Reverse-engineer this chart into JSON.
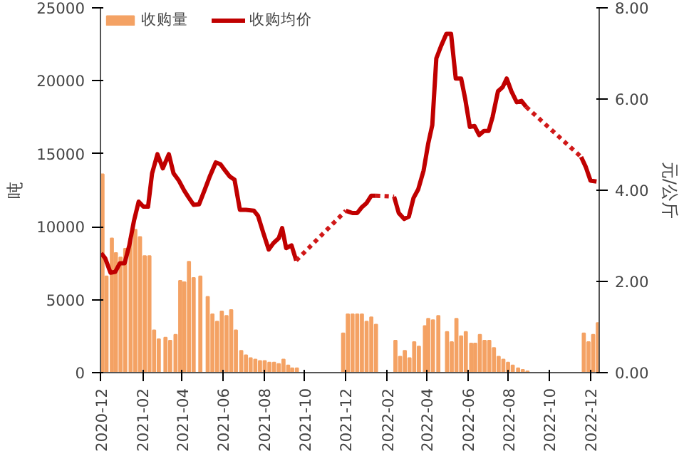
{
  "chart_data": {
    "type": "bar",
    "xlabel": null,
    "ylabel": "吨",
    "y2label": "元/公斤",
    "legend": "top left",
    "grid": false,
    "xlim": [
      "2020-11-30",
      "2022-12-14"
    ],
    "xticks": [
      {
        "value": "2020-12-01",
        "label": "2020-12"
      },
      {
        "value": "2021-02-01",
        "label": "2021-02"
      },
      {
        "value": "2021-04-01",
        "label": "2021-04"
      },
      {
        "value": "2021-06-01",
        "label": "2021-06"
      },
      {
        "value": "2021-08-01",
        "label": "2021-08"
      },
      {
        "value": "2021-10-01",
        "label": "2021-10"
      },
      {
        "value": "2021-12-01",
        "label": "2021-12"
      },
      {
        "value": "2022-02-01",
        "label": "2022-02"
      },
      {
        "value": "2022-04-01",
        "label": "2022-04"
      },
      {
        "value": "2022-06-01",
        "label": "2022-06"
      },
      {
        "value": "2022-08-01",
        "label": "2022-08"
      },
      {
        "value": "2022-10-01",
        "label": "2022-10"
      },
      {
        "value": "2022-12-01",
        "label": "2022-12"
      }
    ],
    "ylim": [
      0,
      25000
    ],
    "yticks": [
      0,
      5000,
      10000,
      15000,
      20000,
      25000
    ],
    "y2lim": [
      0,
      8
    ],
    "y2ticks": [
      {
        "value": 0,
        "label": "0.00"
      },
      {
        "value": 2,
        "label": "2.00"
      },
      {
        "value": 4,
        "label": "4.00"
      },
      {
        "value": 6,
        "label": "6.00"
      },
      {
        "value": 8,
        "label": "8.00"
      }
    ],
    "series": [
      {
        "name": "收购量",
        "color": "#f4a264",
        "x": [
          "2020-12-03",
          "2020-12-09",
          "2020-12-17",
          "2020-12-23",
          "2020-12-30",
          "2021-01-06",
          "2021-01-14",
          "2021-01-21",
          "2021-01-28",
          "2021-02-04",
          "2021-02-11",
          "2021-02-18",
          "2021-02-25",
          "2021-03-07",
          "2021-03-14",
          "2021-03-22",
          "2021-03-29",
          "2021-04-04",
          "2021-04-11",
          "2021-04-18",
          "2021-04-28",
          "2021-05-09",
          "2021-05-16",
          "2021-05-23",
          "2021-05-30",
          "2021-06-06",
          "2021-06-13",
          "2021-06-20",
          "2021-06-28",
          "2021-07-05",
          "2021-07-12",
          "2021-07-19",
          "2021-07-26",
          "2021-08-02",
          "2021-08-09",
          "2021-08-16",
          "2021-08-23",
          "2021-08-30",
          "2021-09-06",
          "2021-09-12",
          "2021-09-19",
          "2021-11-27",
          "2021-12-04",
          "2021-12-11",
          "2021-12-18",
          "2021-12-25",
          "2022-01-01",
          "2022-01-08",
          "2022-01-15",
          "2022-02-13",
          "2022-02-20",
          "2022-02-27",
          "2022-03-06",
          "2022-03-13",
          "2022-03-20",
          "2022-03-29",
          "2022-04-03",
          "2022-04-10",
          "2022-04-18",
          "2022-05-01",
          "2022-05-08",
          "2022-05-15",
          "2022-05-22",
          "2022-05-29",
          "2022-06-06",
          "2022-06-12",
          "2022-06-19",
          "2022-06-26",
          "2022-07-03",
          "2022-07-10",
          "2022-07-17",
          "2022-07-24",
          "2022-07-31",
          "2022-08-07",
          "2022-08-15",
          "2022-08-22",
          "2022-08-29",
          "2022-11-21",
          "2022-11-28",
          "2022-12-05",
          "2022-12-12"
        ],
        "values": [
          13600,
          6600,
          9200,
          8200,
          7900,
          8500,
          9200,
          9800,
          9300,
          8000,
          8000,
          2900,
          2300,
          2400,
          2200,
          2600,
          6300,
          6200,
          7600,
          6500,
          6600,
          5200,
          4000,
          3500,
          4200,
          3900,
          4300,
          2900,
          1500,
          1200,
          1000,
          900,
          800,
          800,
          700,
          700,
          600,
          900,
          500,
          300,
          300,
          2700,
          4000,
          4000,
          4000,
          4000,
          3500,
          3800,
          3300,
          2200,
          1100,
          1500,
          1000,
          2100,
          1800,
          3200,
          3700,
          3600,
          3900,
          2800,
          2100,
          3700,
          2500,
          2800,
          2000,
          2000,
          2600,
          2200,
          2200,
          1700,
          1100,
          900,
          700,
          500,
          300,
          200,
          100,
          2700,
          2100,
          2600,
          3400
        ]
      },
      {
        "name": "收购均价",
        "type": "line",
        "axis": "y2",
        "color": "#c00000",
        "x": [
          "2020-12-01",
          "2020-12-07",
          "2020-12-15",
          "2020-12-22",
          "2020-12-29",
          "2021-01-05",
          "2021-01-12",
          "2021-01-19",
          "2021-01-26",
          "2021-02-02",
          "2021-02-09",
          "2021-02-15",
          "2021-02-23",
          "2021-03-03",
          "2021-03-12",
          "2021-03-19",
          "2021-03-27",
          "2021-04-04",
          "2021-04-11",
          "2021-04-18",
          "2021-04-26",
          "2021-05-04",
          "2021-05-12",
          "2021-05-21",
          "2021-05-28",
          "2021-06-04",
          "2021-06-11",
          "2021-06-18",
          "2021-06-26",
          "2021-07-05",
          "2021-07-17",
          "2021-07-23",
          "2021-07-31",
          "2021-08-08",
          "2021-08-15",
          "2021-08-23",
          "2021-08-28",
          "2021-09-03",
          "2021-09-11",
          "2021-09-18",
          "2021-10-30",
          "2021-12-01",
          "2021-12-11",
          "2021-12-18",
          "2021-12-25",
          "2022-01-01",
          "2022-01-08",
          "2022-01-15",
          "2022-01-29",
          "2022-02-11",
          "2022-02-18",
          "2022-02-26",
          "2022-03-05",
          "2022-03-12",
          "2022-03-19",
          "2022-03-27",
          "2022-04-03",
          "2022-04-09",
          "2022-04-15",
          "2022-04-22",
          "2022-04-30",
          "2022-05-07",
          "2022-05-14",
          "2022-05-22",
          "2022-05-28",
          "2022-06-04",
          "2022-06-11",
          "2022-06-18",
          "2022-06-25",
          "2022-07-02",
          "2022-07-08",
          "2022-07-16",
          "2022-07-23",
          "2022-07-29",
          "2022-08-05",
          "2022-08-13",
          "2022-08-20",
          "2022-08-27",
          "2022-10-01",
          "2022-11-17",
          "2022-11-24",
          "2022-12-01",
          "2022-12-10"
        ],
        "values": [
          2.62,
          2.51,
          2.19,
          2.21,
          2.4,
          2.4,
          2.79,
          3.33,
          3.75,
          3.64,
          3.64,
          4.37,
          4.79,
          4.48,
          4.79,
          4.37,
          4.21,
          3.99,
          3.83,
          3.68,
          3.69,
          3.99,
          4.3,
          4.61,
          4.57,
          4.43,
          4.3,
          4.23,
          3.57,
          3.57,
          3.55,
          3.44,
          3.06,
          2.7,
          2.84,
          2.95,
          3.17,
          2.73,
          2.79,
          2.46,
          null,
          3.55,
          3.5,
          3.5,
          3.63,
          3.72,
          3.88,
          3.88,
          null,
          3.86,
          3.5,
          3.37,
          3.42,
          3.83,
          4.02,
          4.43,
          5.03,
          5.43,
          6.89,
          7.16,
          7.43,
          7.43,
          6.45,
          6.45,
          6.01,
          5.39,
          5.41,
          5.21,
          5.3,
          5.3,
          5.61,
          6.17,
          6.26,
          6.45,
          6.17,
          5.93,
          5.96,
          5.83,
          null,
          4.73,
          4.51,
          4.21,
          4.19
        ]
      },
      {
        "type": "line",
        "axis": "y2",
        "line_style": "dotted",
        "color": "#d01818",
        "x": [
          "2021-09-18",
          "2021-12-01",
          "2021-12-20",
          "2022-01-15",
          "2022-02-11",
          "2022-03-01",
          "2022-08-27",
          "2022-11-17"
        ],
        "values": [
          2.46,
          3.55,
          null,
          3.88,
          3.86,
          null,
          5.83,
          4.73
        ]
      }
    ]
  }
}
